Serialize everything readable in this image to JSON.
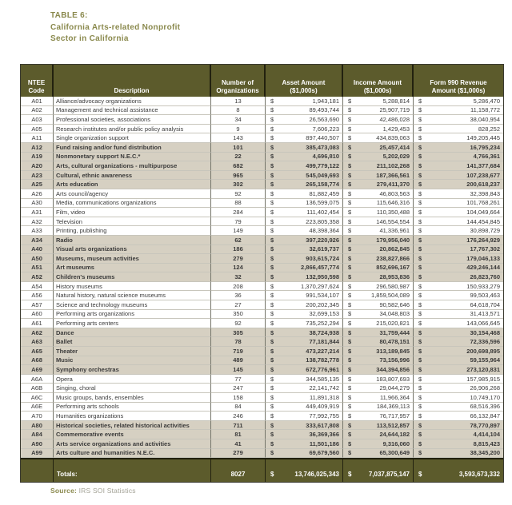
{
  "title": {
    "line1": "TABLE 6:",
    "line2": "California Arts-related Nonprofit",
    "line3": "Sector in California"
  },
  "colors": {
    "header_bg": "#5c5b2c",
    "shaded_row_bg": "#d6d0c2",
    "title_text": "#8a894d"
  },
  "table": {
    "currency": "$",
    "columns": [
      {
        "label": "NTEE\nCode"
      },
      {
        "label": "Description"
      },
      {
        "label": "Number of\nOrganizations"
      },
      {
        "label": "Asset Amount\n($1,000s)"
      },
      {
        "label": "Income Amount\n($1,000s)"
      },
      {
        "label": "Form 990 Revenue\nAmount ($1,000s)"
      }
    ],
    "rows": [
      {
        "code": "A01",
        "desc": "Alliance/advocacy organizations",
        "orgs": "13",
        "asset": "1,943,181",
        "income": "5,288,814",
        "revenue": "5,286,470",
        "shaded": false
      },
      {
        "code": "A02",
        "desc": "Management and technical assistance",
        "orgs": "8",
        "asset": "89,493,744",
        "income": "25,907,719",
        "revenue": "11,158,772",
        "shaded": false
      },
      {
        "code": "A03",
        "desc": "Professional societies, associations",
        "orgs": "34",
        "asset": "26,563,690",
        "income": "42,486,028",
        "revenue": "38,040,954",
        "shaded": false
      },
      {
        "code": "A05",
        "desc": "Research institutes and/or public policy analysis",
        "orgs": "9",
        "asset": "7,606,223",
        "income": "1,429,453",
        "revenue": "828,252",
        "shaded": false
      },
      {
        "code": "A11",
        "desc": "Single organization support",
        "orgs": "143",
        "asset": "897,440,507",
        "income": "434,839,063",
        "revenue": "149,205,445",
        "shaded": false
      },
      {
        "code": "A12",
        "desc": "Fund raising and/or fund distribution",
        "orgs": "101",
        "asset": "385,473,083",
        "income": "25,457,414",
        "revenue": "16,795,234",
        "shaded": true
      },
      {
        "code": "A19",
        "desc": "Nonmonetary support N.E.C.*",
        "orgs": "22",
        "asset": "4,696,810",
        "income": "5,202,029",
        "revenue": "4,766,361",
        "shaded": true
      },
      {
        "code": "A20",
        "desc": "Arts, cultural organizations - multipurpose",
        "orgs": "682",
        "asset": "499,779,122",
        "income": "211,102,268",
        "revenue": "141,377,684",
        "shaded": true
      },
      {
        "code": "A23",
        "desc": "Cultural, ethnic awareness",
        "orgs": "965",
        "asset": "545,049,693",
        "income": "187,366,561",
        "revenue": "107,238,677",
        "shaded": true
      },
      {
        "code": "A25",
        "desc": "Arts education",
        "orgs": "302",
        "asset": "265,158,774",
        "income": "279,411,370",
        "revenue": "200,618,237",
        "shaded": true
      },
      {
        "code": "A26",
        "desc": "Arts council/agency",
        "orgs": "92",
        "asset": "81,882,459",
        "income": "46,803,563",
        "revenue": "32,398,843",
        "shaded": false
      },
      {
        "code": "A30",
        "desc": "Media, communications organizations",
        "orgs": "88",
        "asset": "136,599,075",
        "income": "115,646,316",
        "revenue": "101,768,261",
        "shaded": false
      },
      {
        "code": "A31",
        "desc": "Film, video",
        "orgs": "284",
        "asset": "111,402,454",
        "income": "110,350,488",
        "revenue": "104,049,664",
        "shaded": false
      },
      {
        "code": "A32",
        "desc": "Television",
        "orgs": "79",
        "asset": "223,805,358",
        "income": "146,554,554",
        "revenue": "144,454,845",
        "shaded": false
      },
      {
        "code": "A33",
        "desc": "Printing, publishing",
        "orgs": "149",
        "asset": "48,398,364",
        "income": "41,336,961",
        "revenue": "30,898,729",
        "shaded": false
      },
      {
        "code": "A34",
        "desc": "Radio",
        "orgs": "62",
        "asset": "397,220,926",
        "income": "179,956,040",
        "revenue": "176,264,929",
        "shaded": true
      },
      {
        "code": "A40",
        "desc": "Visual arts organizations",
        "orgs": "186",
        "asset": "32,619,737",
        "income": "20,862,845",
        "revenue": "17,767,302",
        "shaded": true
      },
      {
        "code": "A50",
        "desc": "Museums, museum activities",
        "orgs": "279",
        "asset": "903,615,724",
        "income": "238,827,866",
        "revenue": "179,046,133",
        "shaded": true
      },
      {
        "code": "A51",
        "desc": "Art museums",
        "orgs": "124",
        "asset": "2,866,457,774",
        "income": "852,696,167",
        "revenue": "429,246,144",
        "shaded": true
      },
      {
        "code": "A52",
        "desc": "Children's museums",
        "orgs": "32",
        "asset": "132,950,598",
        "income": "28,953,836",
        "revenue": "26,823,760",
        "shaded": true
      },
      {
        "code": "A54",
        "desc": "History museums",
        "orgs": "208",
        "asset": "1,370,297,624",
        "income": "296,580,987",
        "revenue": "150,933,279",
        "shaded": false
      },
      {
        "code": "A56",
        "desc": "Natural history, natural science museums",
        "orgs": "36",
        "asset": "991,534,107",
        "income": "1,859,504,089",
        "revenue": "99,503,463",
        "shaded": false
      },
      {
        "code": "A57",
        "desc": "Science and technology museums",
        "orgs": "27",
        "asset": "200,202,345",
        "income": "90,582,646",
        "revenue": "64,618,704",
        "shaded": false
      },
      {
        "code": "A60",
        "desc": "Performing arts organizations",
        "orgs": "350",
        "asset": "32,699,153",
        "income": "34,048,803",
        "revenue": "31,413,571",
        "shaded": false
      },
      {
        "code": "A61",
        "desc": "Performing arts centers",
        "orgs": "92",
        "asset": "735,252,294",
        "income": "215,020,821",
        "revenue": "143,066,645",
        "shaded": false
      },
      {
        "code": "A62",
        "desc": "Dance",
        "orgs": "305",
        "asset": "38,724,938",
        "income": "31,759,444",
        "revenue": "30,154,468",
        "shaded": true
      },
      {
        "code": "A63",
        "desc": "Ballet",
        "orgs": "78",
        "asset": "77,181,844",
        "income": "80,478,151",
        "revenue": "72,336,596",
        "shaded": true
      },
      {
        "code": "A65",
        "desc": "Theater",
        "orgs": "719",
        "asset": "473,227,214",
        "income": "313,189,845",
        "revenue": "200,698,895",
        "shaded": true
      },
      {
        "code": "A68",
        "desc": "Music",
        "orgs": "489",
        "asset": "138,782,778",
        "income": "73,156,996",
        "revenue": "59,155,964",
        "shaded": true
      },
      {
        "code": "A69",
        "desc": "Symphony orchestras",
        "orgs": "145",
        "asset": "672,776,961",
        "income": "344,394,856",
        "revenue": "273,120,831",
        "shaded": true
      },
      {
        "code": "A6A",
        "desc": "Opera",
        "orgs": "77",
        "asset": "344,585,135",
        "income": "183,807,693",
        "revenue": "157,985,915",
        "shaded": false
      },
      {
        "code": "A6B",
        "desc": "Singing, choral",
        "orgs": "247",
        "asset": "22,141,742",
        "income": "29,044,279",
        "revenue": "26,906,268",
        "shaded": false
      },
      {
        "code": "A6C",
        "desc": "Music groups, bands, ensembles",
        "orgs": "158",
        "asset": "11,891,318",
        "income": "11,966,364",
        "revenue": "10,749,170",
        "shaded": false
      },
      {
        "code": "A6E",
        "desc": "Performing arts schools",
        "orgs": "84",
        "asset": "449,409,919",
        "income": "184,369,113",
        "revenue": "68,516,396",
        "shaded": false
      },
      {
        "code": "A70",
        "desc": "Humanities organizations",
        "orgs": "246",
        "asset": "77,992,755",
        "income": "76,717,957",
        "revenue": "66,132,847",
        "shaded": false
      },
      {
        "code": "A80",
        "desc": "Historical societies, related historical activities",
        "orgs": "711",
        "asset": "333,617,808",
        "income": "113,512,857",
        "revenue": "78,770,897",
        "shaded": true
      },
      {
        "code": "A84",
        "desc": "Commemorative events",
        "orgs": "81",
        "asset": "36,369,366",
        "income": "24,644,182",
        "revenue": "4,414,104",
        "shaded": true
      },
      {
        "code": "A90",
        "desc": "Arts service organizations and activities",
        "orgs": "41",
        "asset": "11,501,186",
        "income": "9,316,060",
        "revenue": "8,815,423",
        "shaded": true
      },
      {
        "code": "A99",
        "desc": "Arts culture and humanities N.E.C.",
        "orgs": "279",
        "asset": "69,679,560",
        "income": "65,300,649",
        "revenue": "38,345,200",
        "shaded": true
      }
    ],
    "totals": {
      "label": "Totals:",
      "orgs": "8027",
      "asset": "13,746,025,343",
      "income": "7,037,875,147",
      "revenue": "3,593,673,332"
    }
  },
  "source": {
    "label": "Source:",
    "text": "IRS SOI Statistics"
  }
}
